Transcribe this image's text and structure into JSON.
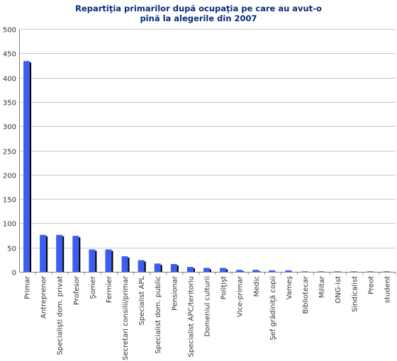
{
  "chart_data": {
    "type": "bar",
    "title_line1": "Repartiţia primarilor după ocupaţia pe care au avut-o",
    "title_line2": "pînă la alegerile din 2007",
    "xlabel": "",
    "ylabel": "",
    "ylim": [
      0,
      500
    ],
    "yticks": [
      0,
      50,
      100,
      150,
      200,
      250,
      300,
      350,
      400,
      450,
      500
    ],
    "grid": true,
    "legend": "none",
    "bar_color": "#3b5ef0",
    "shadow_color": "#000000",
    "categories": [
      "Primar",
      "Antreprenor",
      "Specialişti dom. privat",
      "Profesor",
      "Şomer",
      "Fermier",
      "Secretari consilii/primar",
      "Specialist APL",
      "Specialist dom. public",
      "Pensionar",
      "Specialist APC/teritoriu",
      "Domeniul culturii",
      "Poliţişt",
      "Vice-primar",
      "Medic",
      "Şef grădiniţă copii",
      "Vameş",
      "Bibliotecar",
      "Militar",
      "ONG-ist",
      "Sindicalist",
      "Preot",
      "student"
    ],
    "values": [
      434,
      76,
      76,
      74,
      46,
      46,
      32,
      24,
      17,
      16,
      10,
      8,
      8,
      4,
      4,
      3,
      3,
      1,
      1,
      1,
      1,
      1,
      1
    ]
  }
}
